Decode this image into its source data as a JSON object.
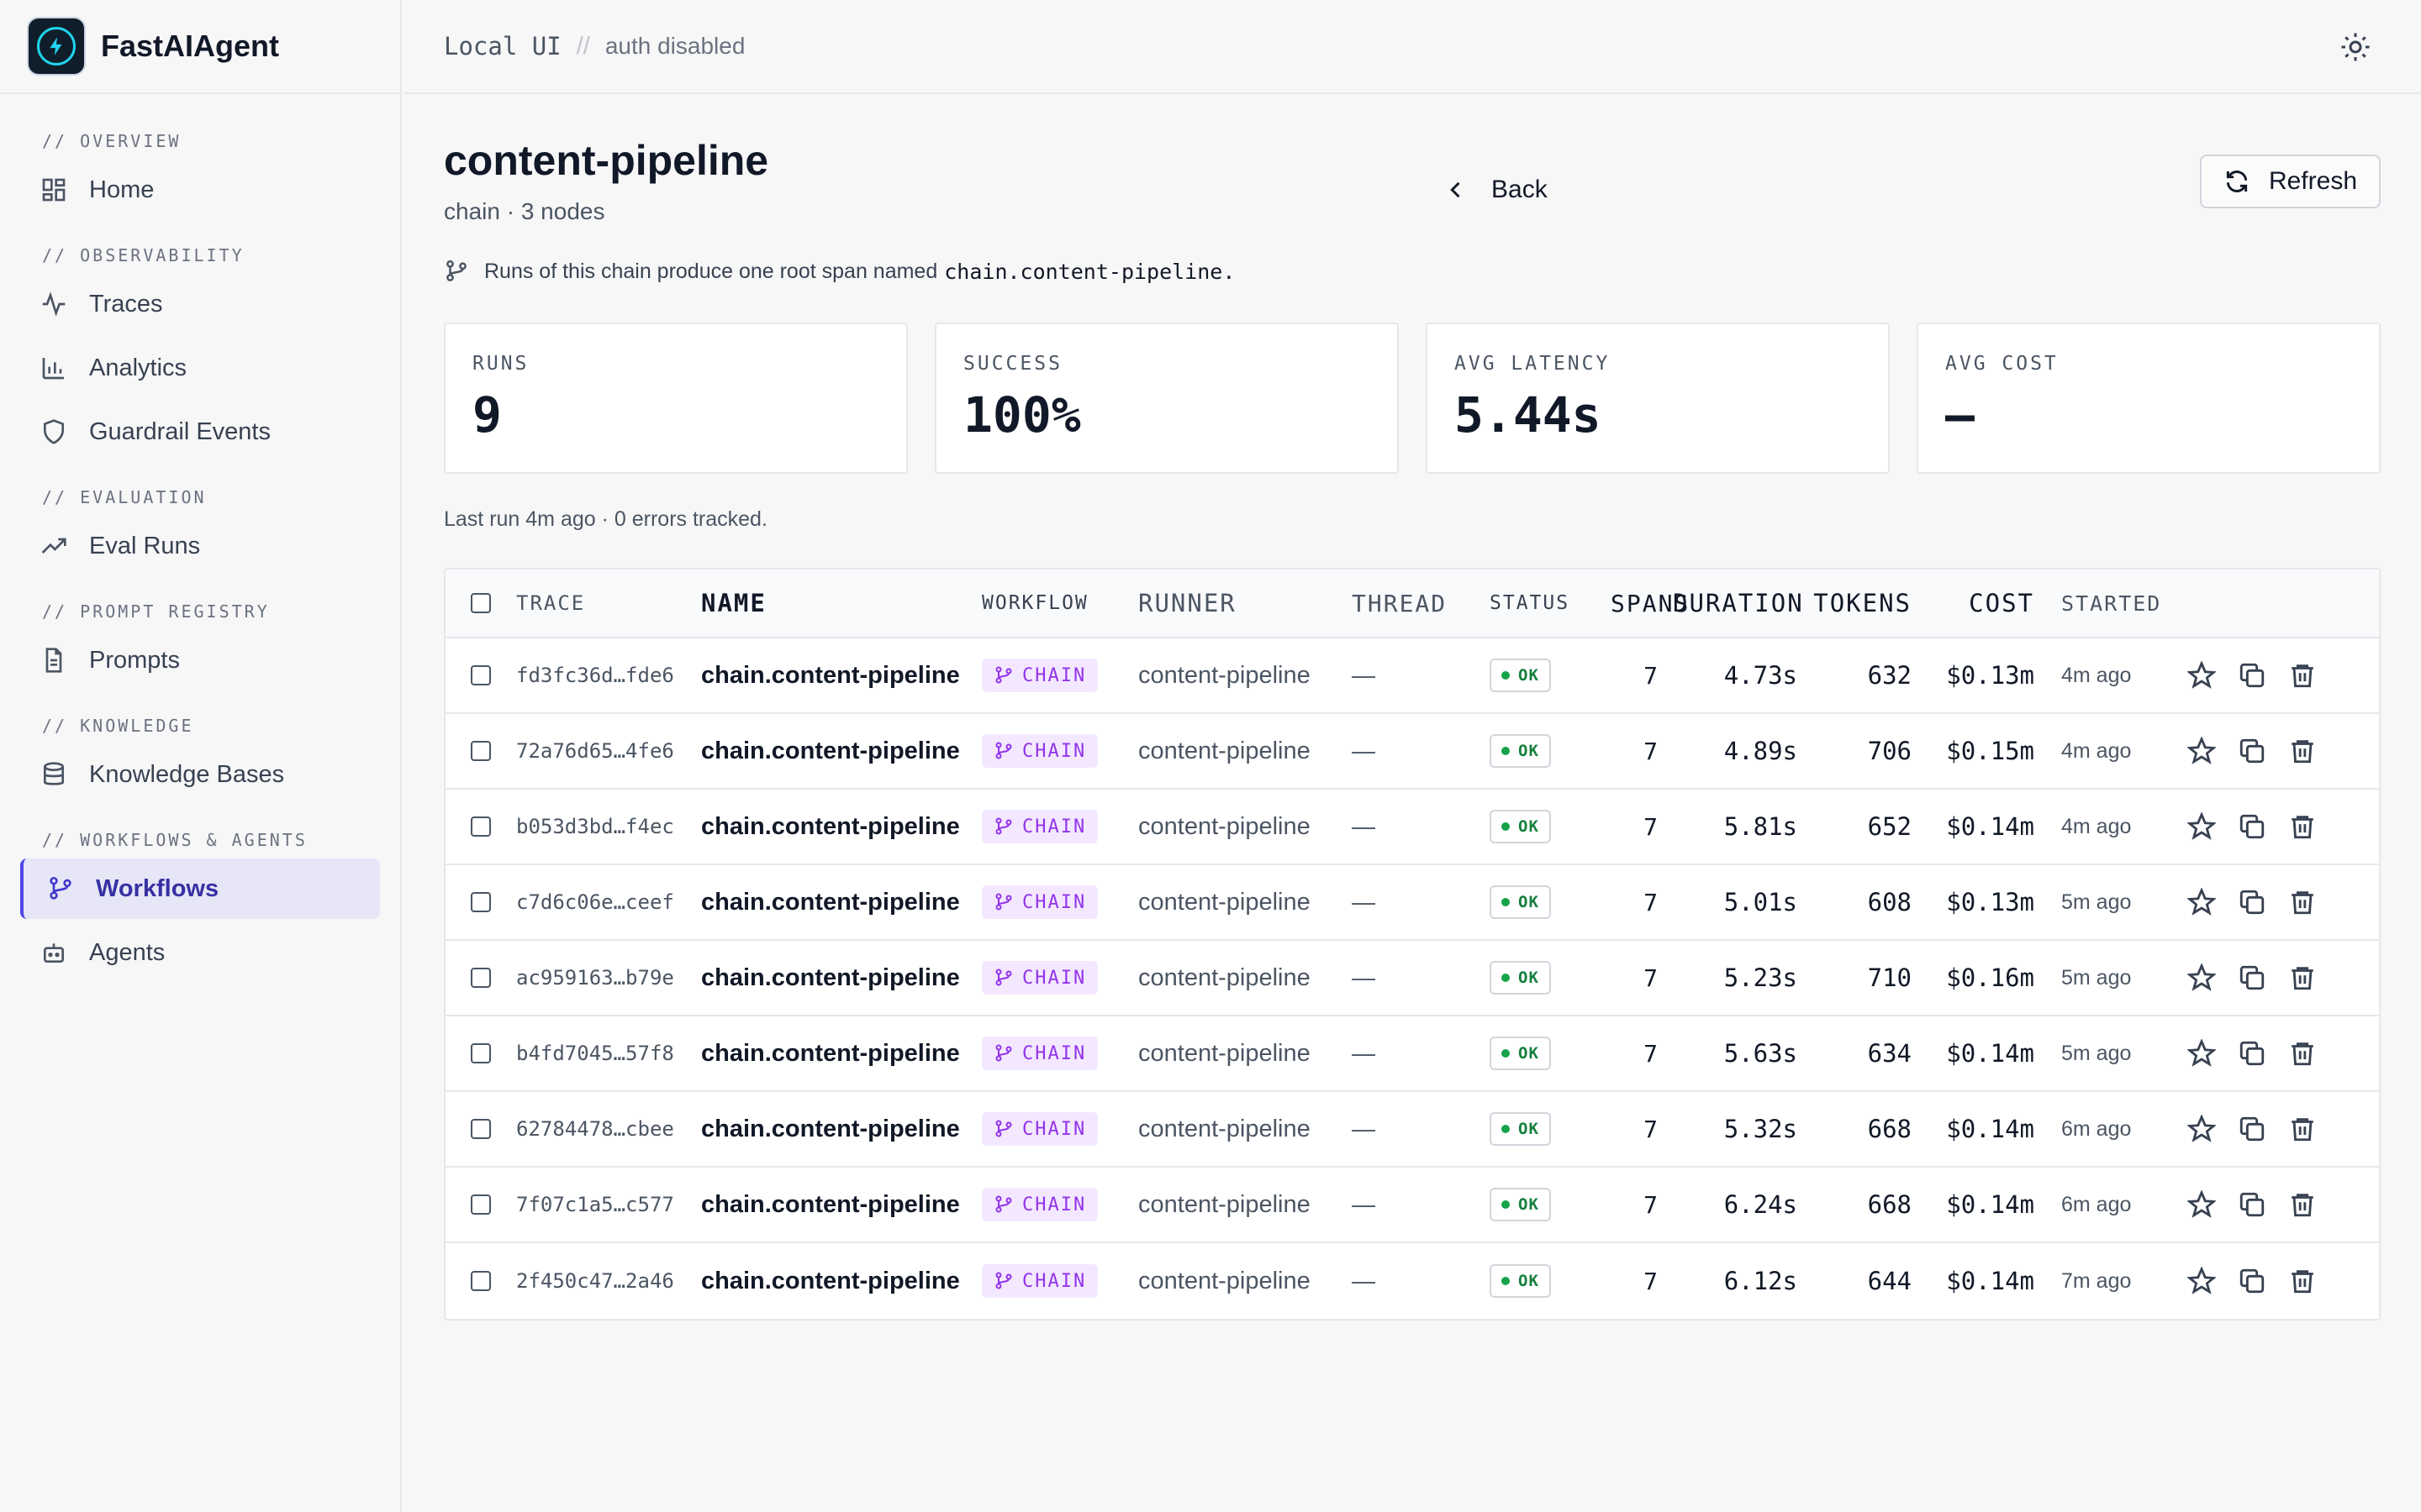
{
  "app": {
    "name": "FastAIAgent"
  },
  "topbar": {
    "local": "Local UI",
    "separator": "//",
    "auth": "auth disabled"
  },
  "sidebar": {
    "sections": [
      {
        "label": "// OVERVIEW",
        "items": [
          {
            "label": "Home",
            "icon": "grid-icon"
          }
        ]
      },
      {
        "label": "// OBSERVABILITY",
        "items": [
          {
            "label": "Traces",
            "icon": "activity-icon"
          },
          {
            "label": "Analytics",
            "icon": "bar-chart-icon"
          },
          {
            "label": "Guardrail Events",
            "icon": "shield-icon"
          }
        ]
      },
      {
        "label": "// EVALUATION",
        "items": [
          {
            "label": "Eval Runs",
            "icon": "trending-up-icon"
          }
        ]
      },
      {
        "label": "// PROMPT REGISTRY",
        "items": [
          {
            "label": "Prompts",
            "icon": "file-text-icon"
          }
        ]
      },
      {
        "label": "// KNOWLEDGE",
        "items": [
          {
            "label": "Knowledge Bases",
            "icon": "database-icon"
          }
        ]
      },
      {
        "label": "// WORKFLOWS & AGENTS",
        "items": [
          {
            "label": "Workflows",
            "icon": "git-branch-icon",
            "active": true
          },
          {
            "label": "Agents",
            "icon": "bot-icon"
          }
        ]
      }
    ]
  },
  "page": {
    "title": "content-pipeline",
    "subtitle": "chain · 3 nodes",
    "back_label": "Back",
    "refresh_label": "Refresh",
    "note_text": "Runs of this chain produce one root span named",
    "note_code": "chain.content-pipeline.",
    "last_run": "Last run 4m ago · 0 errors tracked."
  },
  "stats": [
    {
      "label": "RUNS",
      "value": "9"
    },
    {
      "label": "SUCCESS",
      "value": "100%"
    },
    {
      "label": "AVG LATENCY",
      "value": "5.44s"
    },
    {
      "label": "AVG COST",
      "value": "—"
    }
  ],
  "table": {
    "headers": {
      "trace": "TRACE",
      "name": "NAME",
      "workflow": "WORKFLOW",
      "runner": "RUNNER",
      "thread": "THREAD",
      "status": "STATUS",
      "spans": "SPANS",
      "duration": "DURATION",
      "tokens": "TOKENS",
      "cost": "COST",
      "started": "STARTED"
    },
    "rows": [
      {
        "trace": "fd3fc36d…fde6",
        "name": "chain.content-pipeline",
        "workflow": "CHAIN",
        "runner": "content-pipeline",
        "thread": "—",
        "status": "OK",
        "spans": "7",
        "duration": "4.73s",
        "tokens": "632",
        "cost": "$0.13m",
        "started": "4m ago"
      },
      {
        "trace": "72a76d65…4fe6",
        "name": "chain.content-pipeline",
        "workflow": "CHAIN",
        "runner": "content-pipeline",
        "thread": "—",
        "status": "OK",
        "spans": "7",
        "duration": "4.89s",
        "tokens": "706",
        "cost": "$0.15m",
        "started": "4m ago"
      },
      {
        "trace": "b053d3bd…f4ec",
        "name": "chain.content-pipeline",
        "workflow": "CHAIN",
        "runner": "content-pipeline",
        "thread": "—",
        "status": "OK",
        "spans": "7",
        "duration": "5.81s",
        "tokens": "652",
        "cost": "$0.14m",
        "started": "4m ago"
      },
      {
        "trace": "c7d6c06e…ceef",
        "name": "chain.content-pipeline",
        "workflow": "CHAIN",
        "runner": "content-pipeline",
        "thread": "—",
        "status": "OK",
        "spans": "7",
        "duration": "5.01s",
        "tokens": "608",
        "cost": "$0.13m",
        "started": "5m ago"
      },
      {
        "trace": "ac959163…b79e",
        "name": "chain.content-pipeline",
        "workflow": "CHAIN",
        "runner": "content-pipeline",
        "thread": "—",
        "status": "OK",
        "spans": "7",
        "duration": "5.23s",
        "tokens": "710",
        "cost": "$0.16m",
        "started": "5m ago"
      },
      {
        "trace": "b4fd7045…57f8",
        "name": "chain.content-pipeline",
        "workflow": "CHAIN",
        "runner": "content-pipeline",
        "thread": "—",
        "status": "OK",
        "spans": "7",
        "duration": "5.63s",
        "tokens": "634",
        "cost": "$0.14m",
        "started": "5m ago"
      },
      {
        "trace": "62784478…cbee",
        "name": "chain.content-pipeline",
        "workflow": "CHAIN",
        "runner": "content-pipeline",
        "thread": "—",
        "status": "OK",
        "spans": "7",
        "duration": "5.32s",
        "tokens": "668",
        "cost": "$0.14m",
        "started": "6m ago"
      },
      {
        "trace": "7f07c1a5…c577",
        "name": "chain.content-pipeline",
        "workflow": "CHAIN",
        "runner": "content-pipeline",
        "thread": "—",
        "status": "OK",
        "spans": "7",
        "duration": "6.24s",
        "tokens": "668",
        "cost": "$0.14m",
        "started": "6m ago"
      },
      {
        "trace": "2f450c47…2a46",
        "name": "chain.content-pipeline",
        "workflow": "CHAIN",
        "runner": "content-pipeline",
        "thread": "—",
        "status": "OK",
        "spans": "7",
        "duration": "6.12s",
        "tokens": "644",
        "cost": "$0.14m",
        "started": "7m ago"
      }
    ]
  },
  "colors": {
    "accent": "#4f46e5",
    "chain_badge": "#9333ea",
    "ok": "#16a34a"
  }
}
